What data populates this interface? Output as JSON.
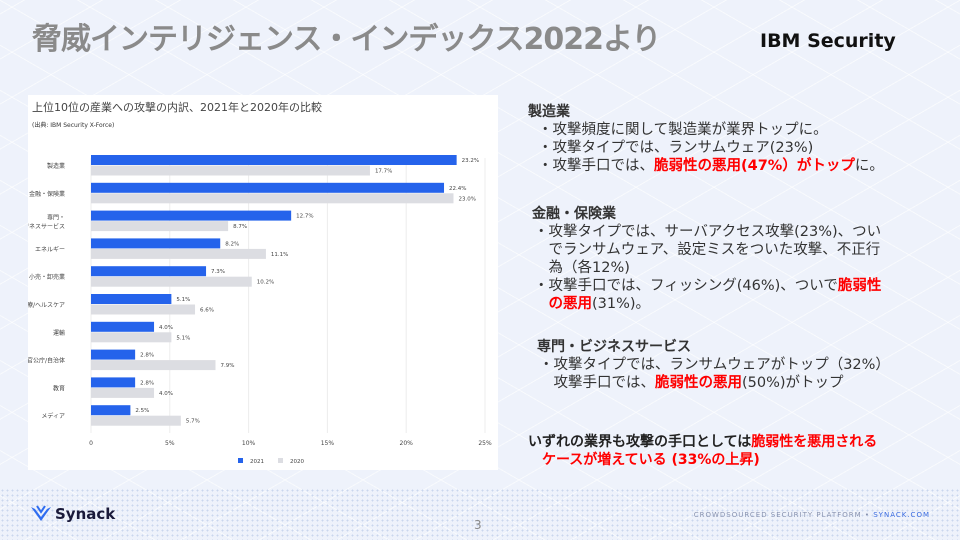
{
  "slide": {
    "title": "脅威インテリジェンス・インデックス2022より",
    "brand": "IBM Security",
    "page_number": "3",
    "footer_logo": "Synack",
    "footer_tag": "CROWDSOURCED SECURITY PLATFORM •",
    "footer_url": "SYNACK.COM"
  },
  "chart_data": {
    "type": "bar",
    "orientation": "horizontal",
    "title": "上位10位の産業への攻撃の内訳、2021年と2020年の比較",
    "subtitle": "(出典: IBM Security X-Force)",
    "categories": [
      "製造業",
      "金融・保険業",
      "専門・ビジネスサービス",
      "エネルギー",
      "小売・卸売業",
      "医療/ヘルスケア",
      "運輸",
      "官公庁/自治体",
      "教育",
      "メディア"
    ],
    "series": [
      {
        "name": "2021",
        "color": "#2563eb",
        "values": [
          23.2,
          22.4,
          12.7,
          8.2,
          7.3,
          5.1,
          4.0,
          2.8,
          2.8,
          2.5
        ]
      },
      {
        "name": "2020",
        "color": "#dcdde2",
        "values": [
          17.7,
          23.0,
          8.7,
          11.1,
          10.2,
          6.6,
          5.1,
          7.9,
          4.0,
          5.7
        ]
      }
    ],
    "xlim": [
      0,
      25
    ],
    "xticks": [
      "0",
      "5%",
      "10%",
      "15%",
      "20%",
      "25%"
    ],
    "legend": "bottom",
    "grid": true
  },
  "sections": [
    {
      "heading": "製造業",
      "lines": [
        [
          {
            "t": "・攻撃頻度に関して製造業が業界トップに。"
          }
        ],
        [
          {
            "t": "・攻撃タイプでは、ランサムウェア(23%)"
          }
        ],
        [
          {
            "t": "・攻撃手口では、"
          },
          {
            "t": "脆弱性の悪用(47%）がトップ",
            "red": true
          },
          {
            "t": "に。"
          }
        ]
      ]
    },
    {
      "heading": "金融・保険業",
      "lines": [
        [
          {
            "t": "・攻撃タイプでは、サーバアクセス攻撃(23%)、つい"
          }
        ],
        [
          {
            "t": "　でランサムウェア、設定ミスをついた攻撃、不正行"
          }
        ],
        [
          {
            "t": "　為（各12%)"
          }
        ],
        [
          {
            "t": "・攻撃手口では、フィッシング(46%)、ついで"
          },
          {
            "t": "脆弱性",
            "red": true
          }
        ],
        [
          {
            "t": "　"
          },
          {
            "t": "の悪用",
            "red": true
          },
          {
            "t": "(31%)。"
          }
        ]
      ]
    },
    {
      "heading": "専門・ビジネスサービス",
      "lines": [
        [
          {
            "t": "・攻撃タイプでは、ランサムウェアがトップ（32%）"
          }
        ],
        [
          {
            "t": "　攻撃手口では、"
          },
          {
            "t": "脆弱性の悪用",
            "red": true
          },
          {
            "t": "(50%)がトップ"
          }
        ]
      ]
    }
  ],
  "conclusion": [
    [
      {
        "t": "いずれの業界も攻撃の手口としては"
      },
      {
        "t": "脆弱性を悪用される",
        "red": true
      }
    ],
    [
      {
        "t": "　"
      },
      {
        "t": "ケースが増えている (33%の上昇)",
        "red": true
      }
    ]
  ]
}
